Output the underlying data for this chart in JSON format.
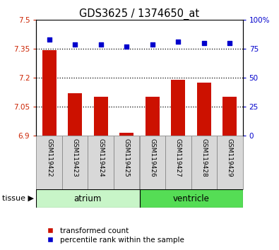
{
  "title": "GDS3625 / 1374650_at",
  "samples": [
    "GSM119422",
    "GSM119423",
    "GSM119424",
    "GSM119425",
    "GSM119426",
    "GSM119427",
    "GSM119428",
    "GSM119429"
  ],
  "transformed_counts": [
    7.345,
    7.12,
    7.1,
    6.915,
    7.1,
    7.19,
    7.175,
    7.1
  ],
  "percentile_ranks": [
    83,
    79,
    79,
    77,
    79,
    81,
    80,
    80
  ],
  "tissue_groups": [
    {
      "label": "atrium",
      "samples": [
        0,
        1,
        2,
        3
      ],
      "color": "#c8f5c8"
    },
    {
      "label": "ventricle",
      "samples": [
        4,
        5,
        6,
        7
      ],
      "color": "#55dd55"
    }
  ],
  "ylim_left": [
    6.9,
    7.5
  ],
  "ylim_right": [
    0,
    100
  ],
  "yticks_left": [
    6.9,
    7.05,
    7.2,
    7.35,
    7.5
  ],
  "yticks_left_labels": [
    "6.9",
    "7.05",
    "7.2",
    "7.35",
    "7.5"
  ],
  "yticks_right": [
    0,
    25,
    50,
    75,
    100
  ],
  "yticks_right_labels": [
    "0",
    "25",
    "50",
    "75",
    "100%"
  ],
  "hlines": [
    7.05,
    7.2,
    7.35
  ],
  "bar_color": "#cc1100",
  "dot_color": "#0000cc",
  "bar_width": 0.55,
  "tick_label_color_left": "#cc2200",
  "tick_label_color_right": "#0000cc",
  "legend_items": [
    "transformed count",
    "percentile rank within the sample"
  ],
  "tissue_label": "tissue",
  "sample_box_color": "#d8d8d8",
  "sample_box_edge": "#888888"
}
